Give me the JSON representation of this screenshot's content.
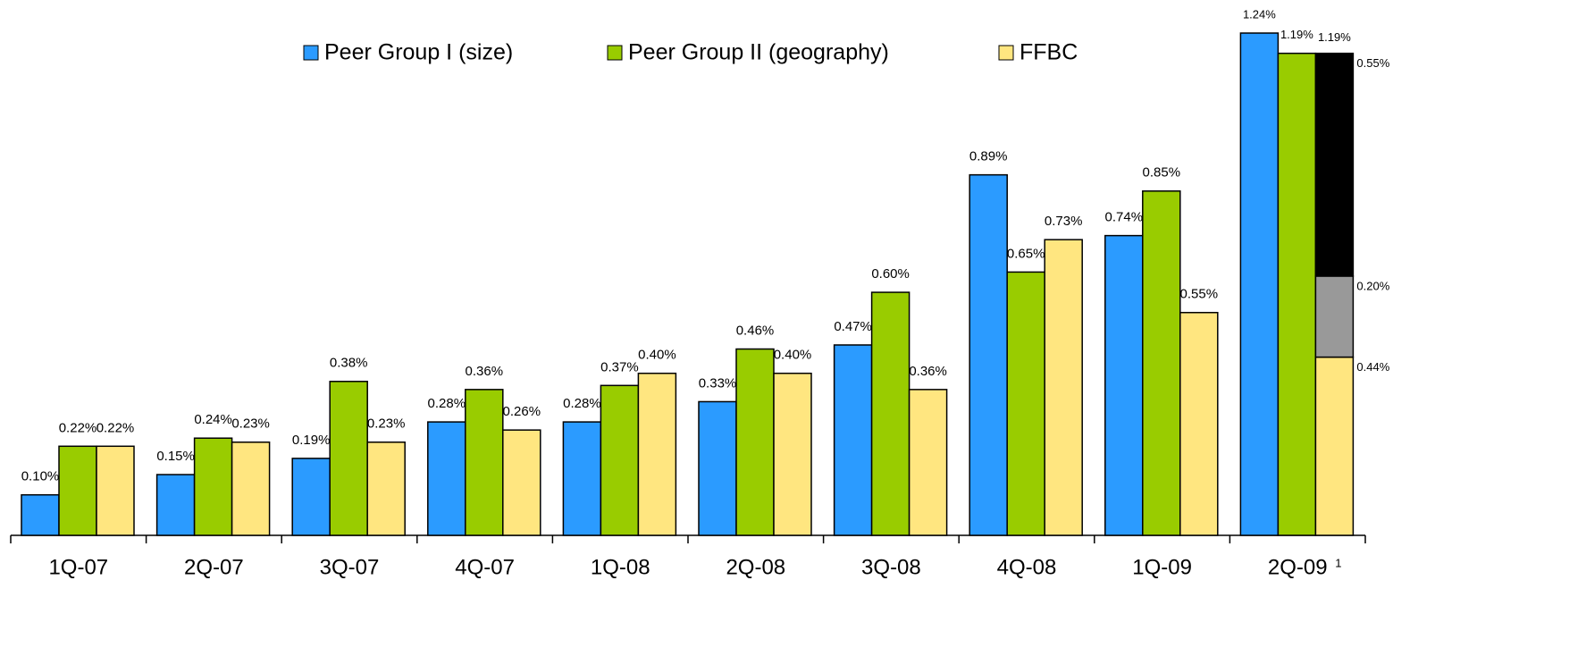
{
  "chart_data": {
    "type": "bar",
    "categories": [
      "1Q-07",
      "2Q-07",
      "3Q-07",
      "4Q-07",
      "1Q-08",
      "2Q-08",
      "3Q-08",
      "4Q-08",
      "1Q-09",
      "2Q-09"
    ],
    "category_notes": [
      null,
      null,
      null,
      null,
      null,
      null,
      null,
      null,
      null,
      "1"
    ],
    "ylim": [
      0,
      1.24
    ],
    "legend": "top",
    "series": [
      {
        "name": "Peer Group I (size)",
        "color": "#2b9bff",
        "values": [
          0.1,
          0.15,
          0.19,
          0.28,
          0.28,
          0.33,
          0.47,
          0.89,
          0.74,
          1.24
        ],
        "value_labels": [
          "0.10%",
          "0.15%",
          "0.19%",
          "0.28%",
          "0.28%",
          "0.33%",
          "0.47%",
          "0.89%",
          "0.74%",
          "1.24%"
        ]
      },
      {
        "name": "Peer Group II (geography)",
        "color": "#99cc00",
        "values": [
          0.22,
          0.24,
          0.38,
          0.36,
          0.37,
          0.46,
          0.6,
          0.65,
          0.85,
          1.19
        ],
        "value_labels": [
          "0.22%",
          "0.24%",
          "0.38%",
          "0.36%",
          "0.37%",
          "0.46%",
          "0.60%",
          "0.65%",
          "0.85%",
          "1.19%"
        ]
      },
      {
        "name": "FFBC",
        "color": "#ffe680",
        "values": [
          0.22,
          0.23,
          0.23,
          0.26,
          0.4,
          0.4,
          0.36,
          0.73,
          0.55,
          0.44
        ],
        "value_labels": [
          "0.22%",
          "0.23%",
          "0.23%",
          "0.26%",
          "0.40%",
          "0.40%",
          "0.36%",
          "0.73%",
          "0.55%",
          "0.44%"
        ]
      }
    ],
    "stack_segments": [
      {
        "color": "#999999",
        "value": 0.2,
        "value_label": "0.20%"
      },
      {
        "color": "#000000",
        "value": 0.55,
        "value_label": "0.55%"
      }
    ],
    "stack_total_label": "1.19%"
  }
}
